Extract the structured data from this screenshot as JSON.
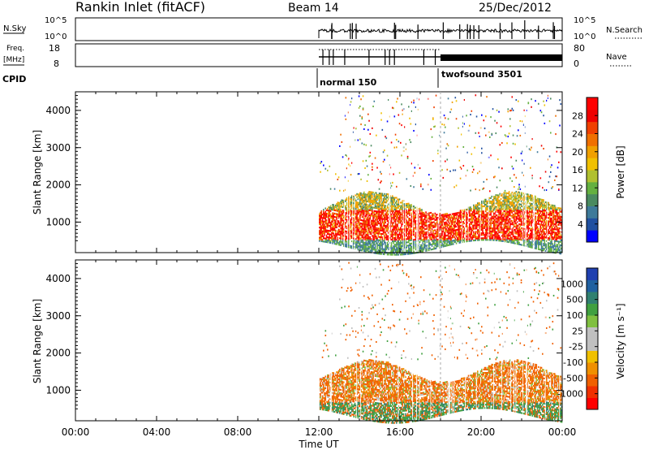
{
  "header": {
    "station": "Rankin Inlet (fitACF)",
    "beam": "Beam 14",
    "date": "25/Dec/2012"
  },
  "nsky_panel": {
    "left_label": "N.Sky",
    "left_ticks": [
      "10^5",
      "10^0"
    ],
    "right_label": "N.Search",
    "right_ticks": [
      "10^5",
      "10^0"
    ]
  },
  "freq_panel": {
    "left_label_1": "Freq.",
    "left_label_2": "[MHz]",
    "left_ticks": [
      "18",
      "8"
    ],
    "right_label": "Nave",
    "right_ticks": [
      "80",
      "0"
    ]
  },
  "cpid": {
    "label": "CPID",
    "programs": [
      "normal 150",
      "twofsound 3501"
    ]
  },
  "power_panel": {
    "ylabel": "Slant Range [km]",
    "yticks": [
      "4000",
      "3000",
      "2000",
      "1000"
    ],
    "colorbar_title": "Power [dB]",
    "colorbar_ticks": [
      "28",
      "24",
      "20",
      "16",
      "12",
      "8",
      "4"
    ],
    "colors": [
      "#0000ff",
      "#2050a0",
      "#3e7a9a",
      "#4a8a60",
      "#64b040",
      "#b0c030",
      "#f0c000",
      "#f0a000",
      "#f07000",
      "#f04000",
      "#ee0000",
      "#ff0000"
    ]
  },
  "velocity_panel": {
    "ylabel": "Slant Range [km]",
    "yticks": [
      "4000",
      "3000",
      "2000",
      "1000"
    ],
    "colorbar_title": "Velocity [m s⁻¹]",
    "colorbar_ticks": [
      "1000",
      "500",
      "100",
      "25",
      "-25",
      "-100",
      "-500",
      "-1000"
    ],
    "colors": [
      "#2040b0",
      "#2060a0",
      "#308070",
      "#40a040",
      "#80c040",
      "#c0c0c0",
      "#c0c0c0",
      "#f0c000",
      "#f09000",
      "#f06000",
      "#f03000",
      "#ff0000"
    ]
  },
  "xaxis": {
    "ticks": [
      "00:00",
      "04:00",
      "08:00",
      "12:00",
      "16:00",
      "20:00",
      "00:00"
    ],
    "label": "Time UT"
  },
  "chart_data": [
    {
      "type": "line",
      "title": "N.Sky / N.Search",
      "xlabel": "Time UT",
      "x_range_hours": [
        0,
        24
      ],
      "ylim": [
        "10^0",
        "10^5"
      ],
      "data_start_hour": 12.0,
      "log_scale": true
    },
    {
      "type": "line",
      "title": "Freq. / Nave",
      "x_range_hours": [
        0,
        24
      ],
      "ylim_freq_mhz": [
        8,
        18
      ],
      "ylim_nave": [
        0,
        80
      ],
      "freq_mhz_approx": 10.5,
      "cpid_changes": [
        {
          "start_hour": 12.0,
          "program": "normal 150"
        },
        {
          "start_hour": 18.0,
          "program": "twofsound 3501"
        }
      ]
    },
    {
      "type": "heatmap",
      "title": "Power [dB]",
      "xlabel": "Time UT",
      "ylabel": "Slant Range [km]",
      "x_range_hours": [
        0,
        24
      ],
      "ylim_km": [
        180,
        4500
      ],
      "color_range_db": [
        0,
        30
      ],
      "scatter_start_hour": 12.0
    },
    {
      "type": "heatmap",
      "title": "Velocity [m s⁻¹]",
      "xlabel": "Time UT",
      "ylabel": "Slant Range [km]",
      "x_range_hours": [
        0,
        24
      ],
      "ylim_km": [
        180,
        4500
      ],
      "color_levels_ms": [
        1000,
        500,
        100,
        25,
        -25,
        -100,
        -500,
        -1000
      ],
      "scatter_start_hour": 12.0
    }
  ]
}
